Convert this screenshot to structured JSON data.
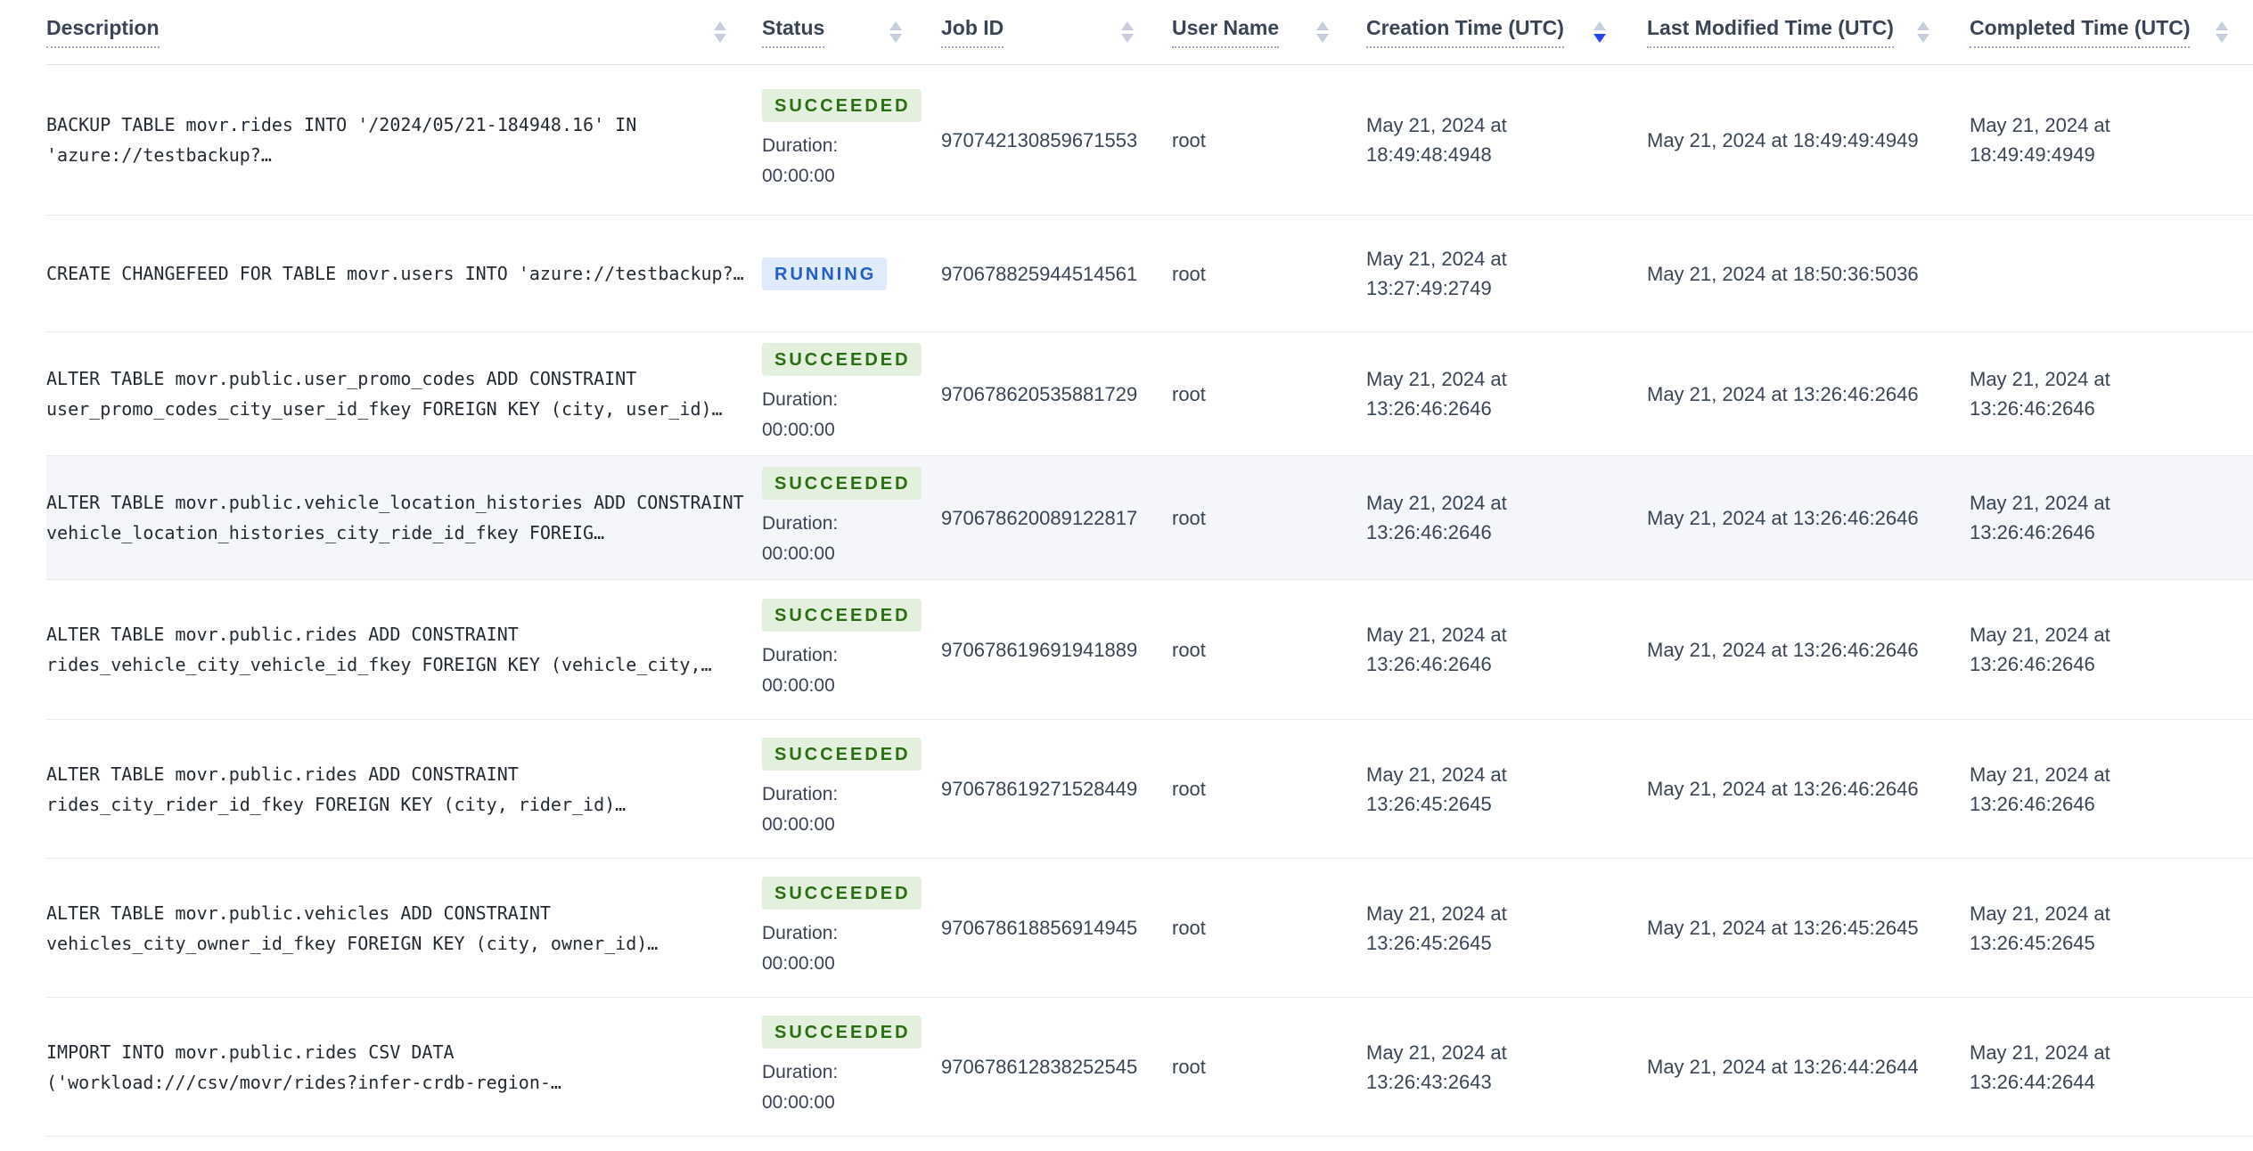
{
  "table": {
    "columns": [
      {
        "label": "Description",
        "sort": "none"
      },
      {
        "label": "Status",
        "sort": "none"
      },
      {
        "label": "Job ID",
        "sort": "none"
      },
      {
        "label": "User Name",
        "sort": "none"
      },
      {
        "label": "Creation Time (UTC)",
        "sort": "desc"
      },
      {
        "label": "Last Modified Time (UTC)",
        "sort": "none"
      },
      {
        "label": "Completed Time (UTC)",
        "sort": "none"
      }
    ],
    "rows": [
      {
        "description": "BACKUP TABLE movr.rides INTO '/2024/05/21-184948.16' IN 'azure://testbackup?…",
        "status": "SUCCEEDED",
        "duration_label": "Duration:",
        "duration": "00:00:00",
        "job_id": "970742130859671553",
        "user_name": "root",
        "creation_time": "May 21, 2024 at 18:49:48:4948",
        "last_modified_time": "May 21, 2024 at 18:49:49:4949",
        "completed_time": "May 21, 2024 at 18:49:49:4949",
        "highlighted": false
      },
      {
        "description": "CREATE CHANGEFEED FOR TABLE movr.users INTO 'azure://testbackup?…",
        "status": "RUNNING",
        "duration_label": "",
        "duration": "",
        "job_id": "970678825944514561",
        "user_name": "root",
        "creation_time": "May 21, 2024 at 13:27:49:2749",
        "last_modified_time": "May 21, 2024 at 18:50:36:5036",
        "completed_time": "",
        "highlighted": false
      },
      {
        "description": "ALTER TABLE movr.public.user_promo_codes ADD CONSTRAINT user_promo_codes_city_user_id_fkey FOREIGN KEY (city, user_id)…",
        "status": "SUCCEEDED",
        "duration_label": "Duration:",
        "duration": "00:00:00",
        "job_id": "970678620535881729",
        "user_name": "root",
        "creation_time": "May 21, 2024 at 13:26:46:2646",
        "last_modified_time": "May 21, 2024 at 13:26:46:2646",
        "completed_time": "May 21, 2024 at 13:26:46:2646",
        "highlighted": false
      },
      {
        "description": "ALTER TABLE movr.public.vehicle_location_histories ADD CONSTRAINT vehicle_location_histories_city_ride_id_fkey FOREIG…",
        "status": "SUCCEEDED",
        "duration_label": "Duration:",
        "duration": "00:00:00",
        "job_id": "970678620089122817",
        "user_name": "root",
        "creation_time": "May 21, 2024 at 13:26:46:2646",
        "last_modified_time": "May 21, 2024 at 13:26:46:2646",
        "completed_time": "May 21, 2024 at 13:26:46:2646",
        "highlighted": true
      },
      {
        "description": "ALTER TABLE movr.public.rides ADD CONSTRAINT rides_vehicle_city_vehicle_id_fkey FOREIGN KEY (vehicle_city,…",
        "status": "SUCCEEDED",
        "duration_label": "Duration:",
        "duration": "00:00:00",
        "job_id": "970678619691941889",
        "user_name": "root",
        "creation_time": "May 21, 2024 at 13:26:46:2646",
        "last_modified_time": "May 21, 2024 at 13:26:46:2646",
        "completed_time": "May 21, 2024 at 13:26:46:2646",
        "highlighted": false
      },
      {
        "description": "ALTER TABLE movr.public.rides ADD CONSTRAINT rides_city_rider_id_fkey FOREIGN KEY (city, rider_id)…",
        "status": "SUCCEEDED",
        "duration_label": "Duration:",
        "duration": "00:00:00",
        "job_id": "970678619271528449",
        "user_name": "root",
        "creation_time": "May 21, 2024 at 13:26:45:2645",
        "last_modified_time": "May 21, 2024 at 13:26:46:2646",
        "completed_time": "May 21, 2024 at 13:26:46:2646",
        "highlighted": false
      },
      {
        "description": "ALTER TABLE movr.public.vehicles ADD CONSTRAINT vehicles_city_owner_id_fkey FOREIGN KEY (city, owner_id)…",
        "status": "SUCCEEDED",
        "duration_label": "Duration:",
        "duration": "00:00:00",
        "job_id": "970678618856914945",
        "user_name": "root",
        "creation_time": "May 21, 2024 at 13:26:45:2645",
        "last_modified_time": "May 21, 2024 at 13:26:45:2645",
        "completed_time": "May 21, 2024 at 13:26:45:2645",
        "highlighted": false
      },
      {
        "description": "IMPORT INTO movr.public.rides CSV DATA ('workload:///csv/movr/rides?infer-crdb-region-…",
        "status": "SUCCEEDED",
        "duration_label": "Duration:",
        "duration": "00:00:00",
        "job_id": "970678612838252545",
        "user_name": "root",
        "creation_time": "May 21, 2024 at 13:26:43:2643",
        "last_modified_time": "May 21, 2024 at 13:26:44:2644",
        "completed_time": "May 21, 2024 at 13:26:44:2644",
        "highlighted": false
      }
    ]
  },
  "colors": {
    "succeeded_text": "#2a6e13",
    "succeeded_bg": "#e3f0de",
    "running_text": "#205fc5",
    "running_bg": "#dfeafc",
    "sort_active": "#2647ec",
    "sort_inactive": "#c7cddd",
    "row_highlight_bg": "#f4f6fa"
  }
}
